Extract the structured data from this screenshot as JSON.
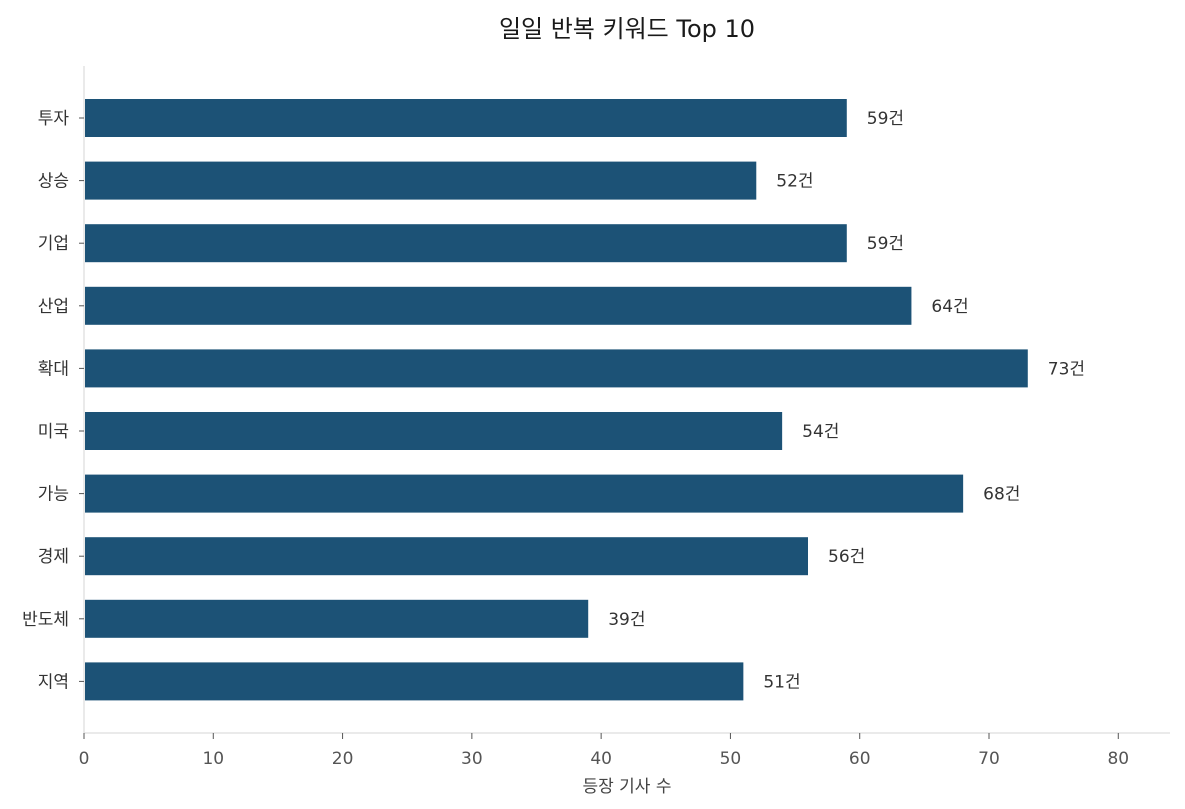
{
  "chart_data": {
    "type": "bar",
    "orientation": "horizontal",
    "title": "일일 반복 키워드 Top 10",
    "xlabel": "등장 기사 수",
    "ylabel": "",
    "categories": [
      "투자",
      "상승",
      "기업",
      "산업",
      "확대",
      "미국",
      "가능",
      "경제",
      "반도체",
      "지역"
    ],
    "values": [
      59,
      52,
      59,
      64,
      73,
      54,
      68,
      56,
      39,
      51
    ],
    "value_suffix": "건",
    "xlim": [
      0,
      84
    ],
    "xticks": [
      0,
      10,
      20,
      30,
      40,
      50,
      60,
      70,
      80
    ],
    "grid": false,
    "bar_color": "#1c5276",
    "axis_color": "#dddddd"
  }
}
